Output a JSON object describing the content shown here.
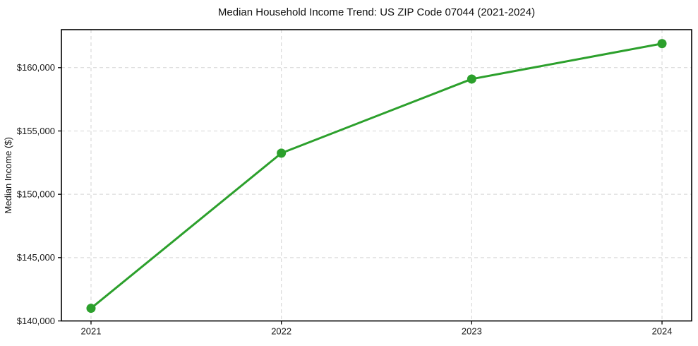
{
  "chart_data": {
    "type": "line",
    "title": "Median Household Income Trend: US ZIP Code 07044 (2021-2024)",
    "xlabel": "",
    "ylabel": "Median Income ($)",
    "categories": [
      "2021",
      "2022",
      "2023",
      "2024"
    ],
    "series": [
      {
        "name": "Median Household Income",
        "values": [
          141000,
          153250,
          159100,
          161900
        ]
      }
    ],
    "ylim": [
      140000,
      163000
    ],
    "yticks": [
      {
        "value": 140000,
        "label": "$140,000"
      },
      {
        "value": 145000,
        "label": "$145,000"
      },
      {
        "value": 150000,
        "label": "$150,000"
      },
      {
        "value": 155000,
        "label": "$155,000"
      },
      {
        "value": 160000,
        "label": "$160,000"
      }
    ],
    "grid": true,
    "grid_style": "dashed",
    "legend_position": "none",
    "colors": {
      "line": "#2ca02c",
      "marker": "#2ca02c",
      "grid": "#d4d4d4",
      "axis_border": "#000000",
      "background": "#ffffff",
      "text": "#1a1a1a"
    }
  }
}
